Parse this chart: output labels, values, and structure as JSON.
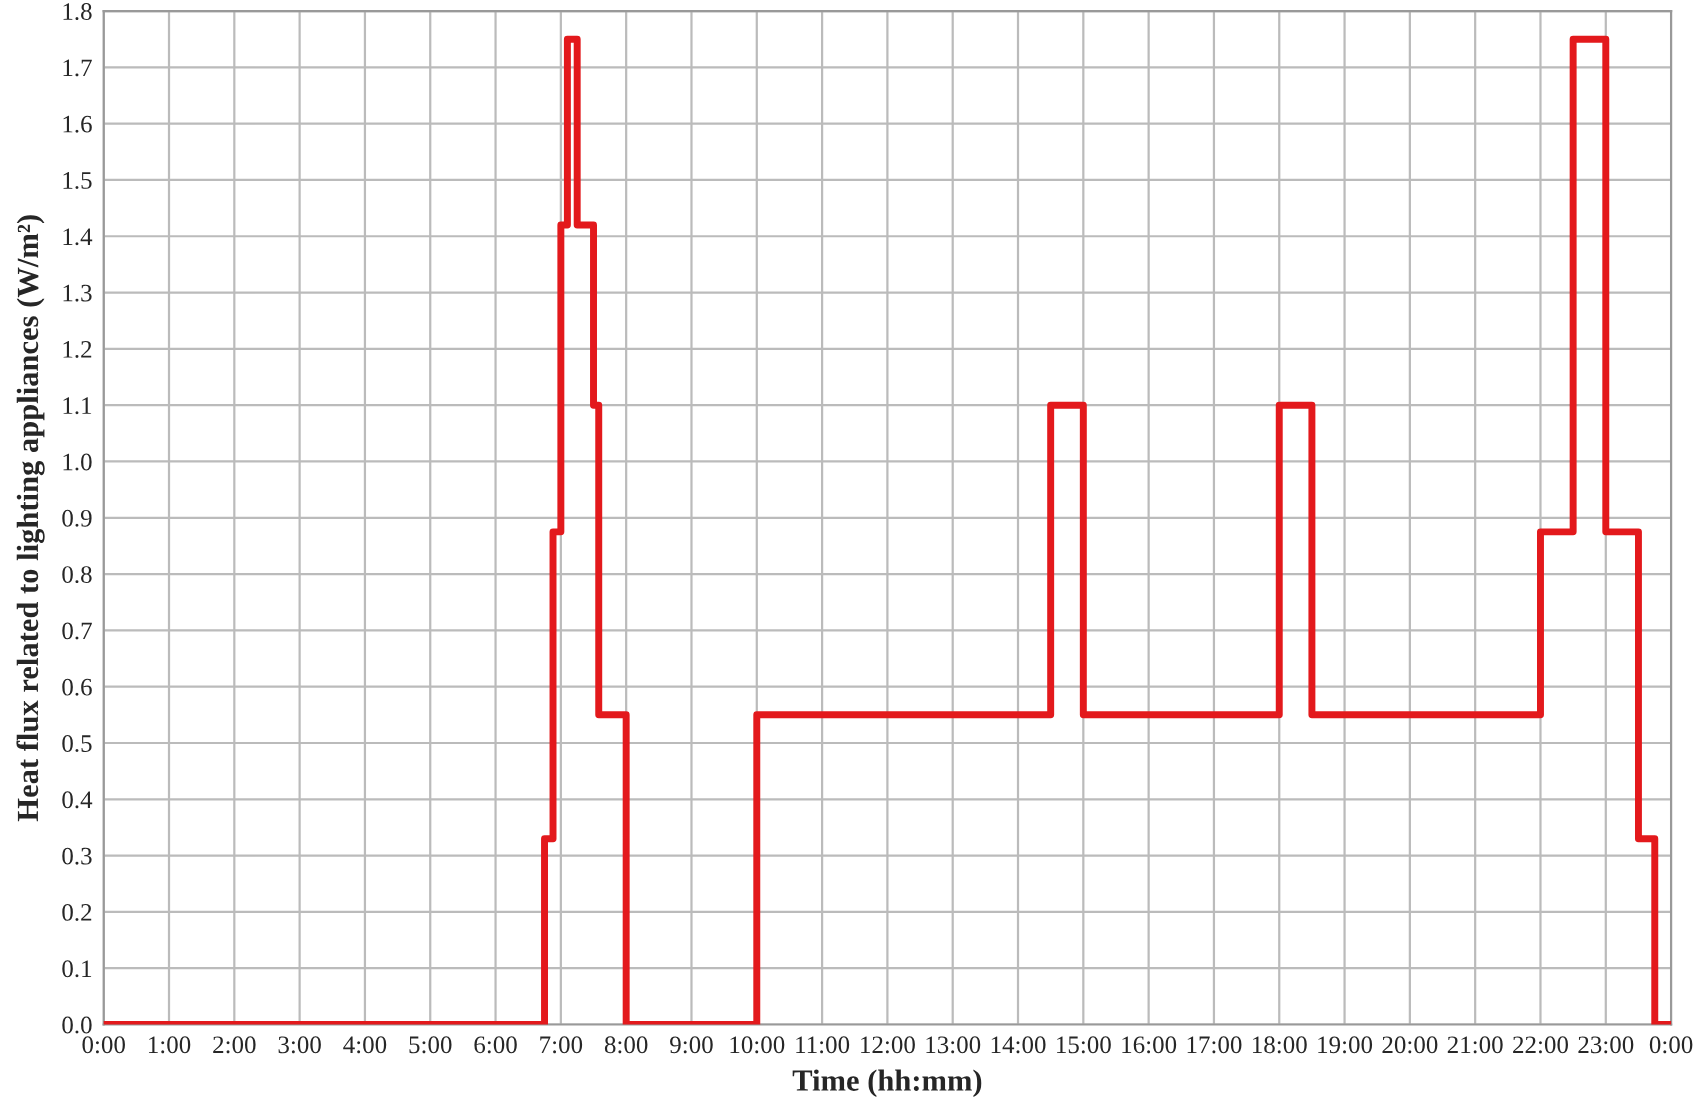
{
  "chart_data": {
    "type": "step",
    "xlabel": "Time (hh:mm)",
    "ylabel": "Heat flux related to lighting appliances (W/m²)",
    "x": [
      0,
      6.75,
      6.88,
      7.0,
      7.1,
      7.25,
      7.5,
      7.58,
      8.0,
      10,
      14.5,
      15,
      18,
      18.5,
      22,
      22.5,
      23,
      23.5,
      23.75,
      24
    ],
    "series": [
      {
        "color": "#e3191c",
        "values": [
          0,
          0.33,
          0.875,
          1.42,
          1.75,
          1.42,
          1.1,
          0.55,
          0,
          0.55,
          1.1,
          0.55,
          1.1,
          0.55,
          0.875,
          1.75,
          0.875,
          0.33,
          0,
          0
        ]
      }
    ],
    "xlim": [
      0,
      24
    ],
    "ylim": [
      0,
      1.8
    ],
    "xticks": [
      {
        "value": 0,
        "label": "0:00"
      },
      {
        "value": 1,
        "label": "1:00"
      },
      {
        "value": 2,
        "label": "2:00"
      },
      {
        "value": 3,
        "label": "3:00"
      },
      {
        "value": 4,
        "label": "4:00"
      },
      {
        "value": 5,
        "label": "5:00"
      },
      {
        "value": 6,
        "label": "6:00"
      },
      {
        "value": 7,
        "label": "7:00"
      },
      {
        "value": 8,
        "label": "8:00"
      },
      {
        "value": 9,
        "label": "9:00"
      },
      {
        "value": 10,
        "label": "10:00"
      },
      {
        "value": 11,
        "label": "11:00"
      },
      {
        "value": 12,
        "label": "12:00"
      },
      {
        "value": 13,
        "label": "13:00"
      },
      {
        "value": 14,
        "label": "14:00"
      },
      {
        "value": 15,
        "label": "15:00"
      },
      {
        "value": 16,
        "label": "16:00"
      },
      {
        "value": 17,
        "label": "17:00"
      },
      {
        "value": 18,
        "label": "18:00"
      },
      {
        "value": 19,
        "label": "19:00"
      },
      {
        "value": 20,
        "label": "20:00"
      },
      {
        "value": 21,
        "label": "21:00"
      },
      {
        "value": 22,
        "label": "22:00"
      },
      {
        "value": 23,
        "label": "23:00"
      },
      {
        "value": 24,
        "label": "0:00"
      }
    ],
    "yticks": [
      {
        "value": 0,
        "label": "0.0"
      },
      {
        "value": 0.1,
        "label": "0.1"
      },
      {
        "value": 0.2,
        "label": "0.2"
      },
      {
        "value": 0.3,
        "label": "0.3"
      },
      {
        "value": 0.4,
        "label": "0.4"
      },
      {
        "value": 0.5,
        "label": "0.5"
      },
      {
        "value": 0.6,
        "label": "0.6"
      },
      {
        "value": 0.7,
        "label": "0.7"
      },
      {
        "value": 0.8,
        "label": "0.8"
      },
      {
        "value": 0.9,
        "label": "0.9"
      },
      {
        "value": 1.0,
        "label": "1.0"
      },
      {
        "value": 1.1,
        "label": "1.1"
      },
      {
        "value": 1.2,
        "label": "1.2"
      },
      {
        "value": 1.3,
        "label": "1.3"
      },
      {
        "value": 1.4,
        "label": "1.4"
      },
      {
        "value": 1.5,
        "label": "1.5"
      },
      {
        "value": 1.6,
        "label": "1.6"
      },
      {
        "value": 1.7,
        "label": "1.7"
      },
      {
        "value": 1.8,
        "label": "1.8"
      }
    ],
    "grid": true,
    "line_style": "solid"
  }
}
